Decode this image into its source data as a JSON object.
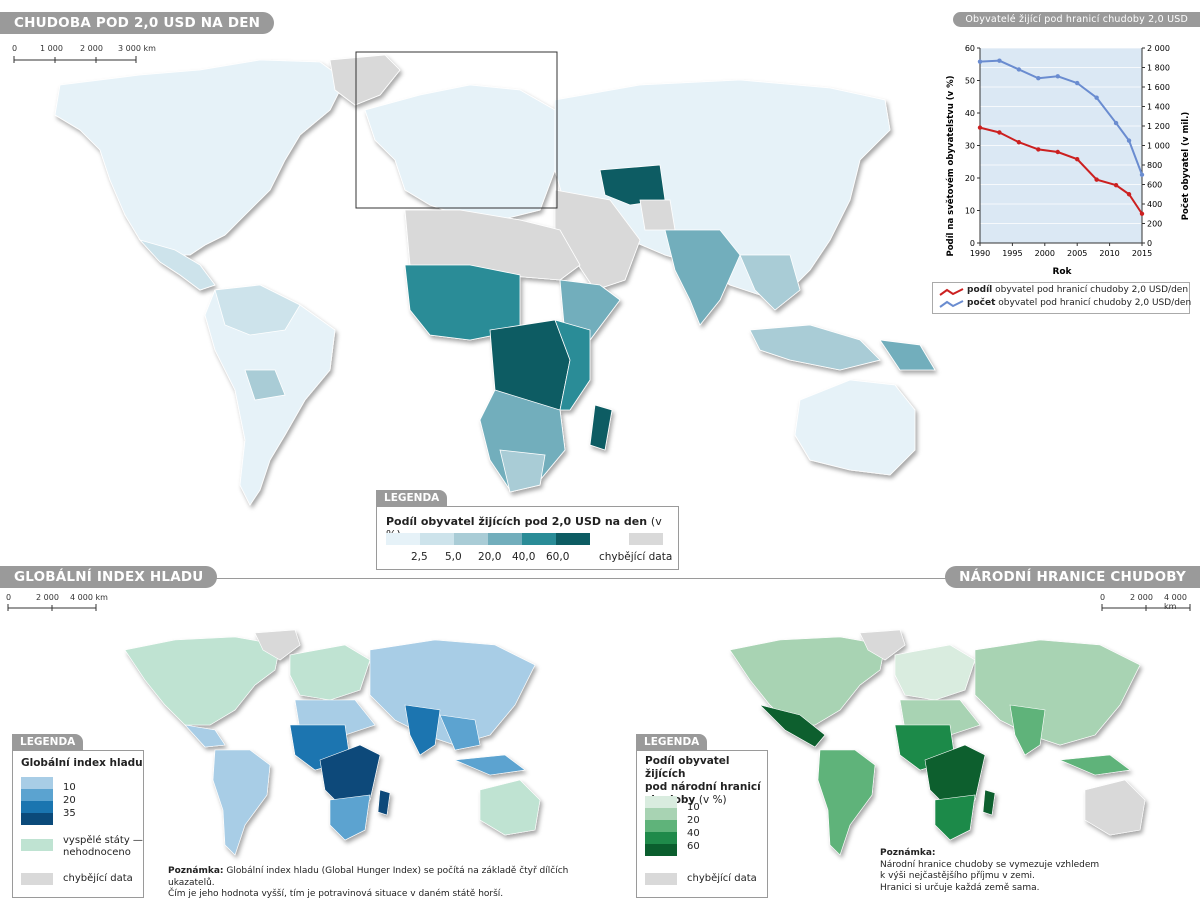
{
  "main_map": {
    "title": "CHUDOBA POD 2,0 USD NA DEN",
    "scale": [
      "0",
      "1 000",
      "2 000",
      "3 000 km"
    ],
    "legend_tab": "LEGENDA",
    "legend_title": "Podíl obyvatel žijících pod 2,0 USD na den",
    "legend_unit": "(v %)",
    "legend_values": [
      "2,5",
      "5,0",
      "20,0",
      "40,0",
      "60,0"
    ],
    "legend_missing": "chybějící data",
    "colors": [
      "#e6f2f8",
      "#cde3eb",
      "#a9ccd6",
      "#72aebc",
      "#2a8c97",
      "#0d5c63",
      "#d9d9d9"
    ]
  },
  "chart": {
    "title": "Obyvatelé žijící pod hranicí chudoby 2,0 USD",
    "y_left_label": "Podíl na světovém obyvatelstvu (v %)",
    "y_right_label": "Počet obyvatel (v mil.)",
    "x_label": "Rok",
    "legend_bold_1": "podíl",
    "legend_rest_1": "obyvatel pod hranicí chudoby 2,0 USD/den",
    "legend_bold_2": "počet",
    "legend_rest_2": "obyvatel pod hranicí chudoby 2,0 USD/den"
  },
  "chart_data": {
    "type": "line",
    "title": "Obyvatelé žijící pod hranicí chudoby 2,0 USD",
    "xlabel": "Rok",
    "ylabel": "Podíl na světovém obyvatelstvu (v %)",
    "y2label": "Počet obyvatel (v mil.)",
    "xlim": [
      1990,
      2015
    ],
    "ylim": [
      0,
      60
    ],
    "y2lim": [
      0,
      2000
    ],
    "x_ticks": [
      1990,
      1995,
      2000,
      2005,
      2010,
      2015
    ],
    "y_ticks": [
      0,
      10,
      20,
      30,
      40,
      50,
      60
    ],
    "y2_ticks": [
      "0",
      "200",
      "400",
      "600",
      "800",
      "1 000",
      "1 200",
      "1 400",
      "1 600",
      "1 800",
      "2 000"
    ],
    "grid": true,
    "legend_position": "bottom",
    "series": [
      {
        "name": "podíl obyvatel pod hranicí chudoby 2,0 USD/den",
        "axis": "left",
        "color": "#cc2020",
        "x": [
          1990,
          1993,
          1996,
          1999,
          2002,
          2005,
          2008,
          2011,
          2013,
          2015
        ],
        "values": [
          35.5,
          34,
          31,
          28.8,
          28,
          25.8,
          19.5,
          17.8,
          15,
          9
        ]
      },
      {
        "name": "počet obyvatel pod hranicí chudoby 2,0 USD/den",
        "axis": "right",
        "color": "#6a8cd0",
        "x": [
          1990,
          1993,
          1996,
          1999,
          2002,
          2005,
          2008,
          2011,
          2013,
          2015
        ],
        "values": [
          1860,
          1870,
          1780,
          1690,
          1710,
          1640,
          1490,
          1230,
          1050,
          700
        ]
      }
    ]
  },
  "hunger_map": {
    "title": "GLOBÁLNÍ INDEX HLADU",
    "scale": [
      "0",
      "2 000",
      "4 000 km"
    ],
    "legend_tab": "LEGENDA",
    "legend_title": "Globální index hladu",
    "legend_values": [
      "10",
      "20",
      "35"
    ],
    "legend_developed": "vyspělé státy —",
    "legend_developed_2": "nehodnoceno",
    "legend_missing": "chybějící data",
    "note_bold": "Poznámka:",
    "note_line1": " Globální index hladu (Global Hunger Index) se počítá na základě čtyř dílčích ukazatelů.",
    "note_line2": "Čím je jeho hodnota vyšší, tím je potravinová situace v daném státě horší.",
    "colors": [
      "#a8cde6",
      "#5ba3d0",
      "#1a75b0",
      "#0b4a7a",
      "#bfe3d2",
      "#d9d9d9"
    ]
  },
  "national_map": {
    "title": "NÁRODNÍ HRANICE CHUDOBY",
    "scale": [
      "0",
      "2 000",
      "4 000 km"
    ],
    "legend_tab": "LEGENDA",
    "legend_title_1": "Podíl obyvatel žijících",
    "legend_title_2": "pod národní hranicí",
    "legend_title_3": "chudoby",
    "legend_unit": "(v %)",
    "legend_values": [
      "10",
      "20",
      "40",
      "60"
    ],
    "legend_missing": "chybějící data",
    "note_bold": "Poznámka:",
    "note_line1": "Národní hranice chudoby se vymezuje vzhledem",
    "note_line2": "k výši nejčastějšího příjmu v zemi.",
    "note_line3": "Hranici si určuje každá země sama.",
    "colors": [
      "#d9ecdf",
      "#a8d3b3",
      "#5fb37a",
      "#1f8a4a",
      "#0b5e2e",
      "#d9d9d9"
    ]
  }
}
